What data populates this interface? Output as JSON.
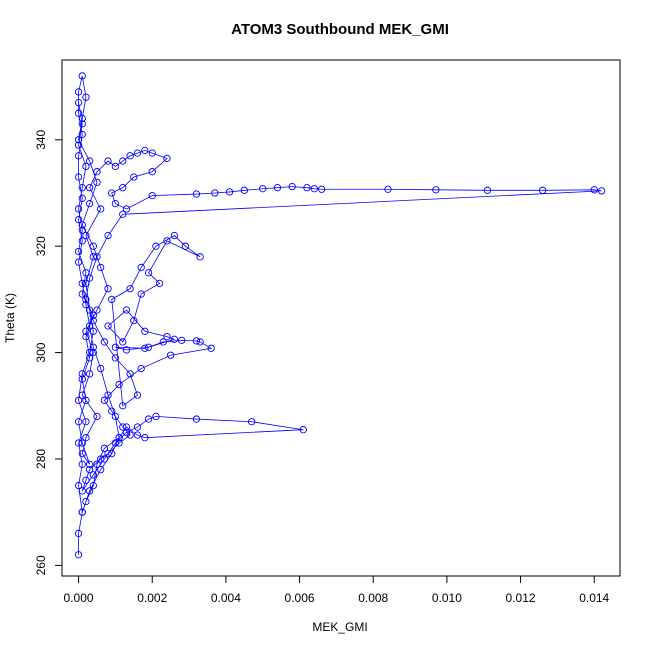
{
  "chart_data": {
    "type": "line",
    "title": "ATOM3 Southbound MEK_GMI",
    "xlabel": "MEK_GMI",
    "ylabel": "Theta (K)",
    "xlim": [
      -0.00045,
      0.0147
    ],
    "ylim": [
      258,
      355
    ],
    "xticks": [
      0.0,
      0.002,
      0.004,
      0.006,
      0.008,
      0.01,
      0.012,
      0.014
    ],
    "xtick_labels": [
      "0.000",
      "0.002",
      "0.004",
      "0.006",
      "0.008",
      "0.010",
      "0.012",
      "0.014"
    ],
    "yticks": [
      260,
      280,
      300,
      320,
      340
    ],
    "ytick_labels": [
      "260",
      "280",
      "300",
      "320",
      "340"
    ],
    "grid": false,
    "legend": "none",
    "series_color": "#0000ff",
    "series": [
      {
        "style": "line+circle-markers",
        "x": [
          0.0,
          0.0,
          0.0001,
          0.0,
          0.0001,
          0.0,
          0.0002,
          0.0,
          0.0001,
          0.0003,
          0.0004,
          0.0003,
          0.0002,
          0.0004,
          0.0002,
          0.0006,
          0.0003,
          0.0005,
          0.0008,
          0.001,
          0.0012,
          0.0014,
          0.0016,
          0.0018,
          0.002,
          0.0024,
          0.002,
          0.0015,
          0.0012,
          0.0009,
          0.001,
          0.0013,
          0.002,
          0.0032,
          0.0037,
          0.0041,
          0.0045,
          0.005,
          0.0054,
          0.0058,
          0.0062,
          0.0064,
          0.0066,
          0.0084,
          0.0097,
          0.0111,
          0.0126,
          0.014,
          0.0142,
          0.0012,
          0.0008,
          0.0005,
          0.0003,
          0.0002,
          0.0004,
          0.0007,
          0.001,
          0.0014,
          0.0016,
          0.0012,
          0.0009,
          0.0014,
          0.0017,
          0.0021,
          0.0026,
          0.0029,
          0.0033,
          0.0024,
          0.0019,
          0.0022,
          0.0017,
          0.0015,
          0.0012,
          0.0008,
          0.0013,
          0.0018,
          0.0024,
          0.0026,
          0.0019,
          0.0013,
          0.001,
          0.0018,
          0.0023,
          0.0028,
          0.0032,
          0.0033,
          0.0036,
          0.0025,
          0.0017,
          0.0011,
          0.0007,
          0.0009,
          0.0012,
          0.0014,
          0.0011,
          0.0008,
          0.0006,
          0.0003,
          0.0002,
          0.0001,
          0.0004,
          0.0007,
          0.001,
          0.0013,
          0.0016,
          0.0019,
          0.0021,
          0.0032,
          0.0047,
          0.0061,
          0.0018,
          0.0016,
          0.0013,
          0.0011,
          0.0007,
          0.0005,
          0.0004,
          0.0002,
          0.0001,
          0.0003,
          0.0006,
          0.0009,
          0.0011,
          0.001,
          0.0008,
          0.0006,
          0.0004,
          0.0003,
          0.0002,
          0.0001,
          0.0,
          0.0001,
          0.0,
          0.0001,
          0.0,
          0.0,
          0.0001,
          0.0,
          0.0,
          0.0001,
          0.0002,
          0.0001,
          0.0,
          0.0003,
          0.0005,
          0.0003,
          0.0001,
          0.0004,
          0.0006,
          0.0008,
          0.0005,
          0.0002,
          0.0004,
          0.0003,
          0.0001,
          0.0005,
          0.0002,
          0.0001,
          0.0003,
          0.0001,
          0.0,
          0.0002,
          0.0001,
          0.0003,
          0.0002,
          0.0004,
          0.0001,
          0.0002,
          0.0,
          0.0001,
          0.0,
          0.0001,
          0.0002,
          0.0,
          0.0001,
          0.0
        ],
        "y": [
          262,
          266,
          270,
          275,
          279,
          283,
          287,
          291,
          296,
          300,
          304,
          308,
          313,
          318,
          322,
          327,
          331,
          334,
          336,
          335,
          336,
          337,
          337.5,
          338,
          337.5,
          336.5,
          334,
          333,
          331,
          330,
          328,
          327,
          329.5,
          329.8,
          330,
          330.2,
          330.5,
          330.8,
          331,
          331.2,
          331,
          330.8,
          330.7,
          330.7,
          330.6,
          330.5,
          330.5,
          330.6,
          330.4,
          326,
          322,
          318,
          314,
          310,
          306,
          302,
          299,
          296,
          292,
          290,
          310,
          312,
          316,
          320,
          322,
          320,
          318,
          321,
          315,
          313,
          311,
          306,
          302,
          305,
          308,
          304,
          303,
          302.5,
          301,
          300.5,
          301,
          300.8,
          302,
          302.3,
          302.2,
          302,
          300.8,
          299.5,
          297,
          294,
          291,
          289,
          286,
          284.5,
          283,
          281,
          280,
          278,
          276,
          274,
          277,
          280,
          283,
          285,
          286,
          287.5,
          288,
          287.5,
          287,
          285.5,
          284,
          284.5,
          286,
          284,
          282,
          279,
          275,
          272,
          270,
          274,
          278,
          281,
          284,
          288,
          292,
          297,
          301,
          305,
          309,
          313,
          317,
          321,
          325,
          329,
          333,
          337,
          341,
          345,
          349,
          352,
          348,
          344,
          340,
          336,
          332,
          328,
          324,
          320,
          316,
          312,
          308,
          304,
          300,
          296,
          292,
          288,
          284,
          281,
          279,
          283,
          287,
          291,
          295,
          299,
          303,
          307,
          311,
          315,
          319,
          323,
          327,
          331,
          335,
          339,
          343,
          347
        ]
      }
    ]
  }
}
